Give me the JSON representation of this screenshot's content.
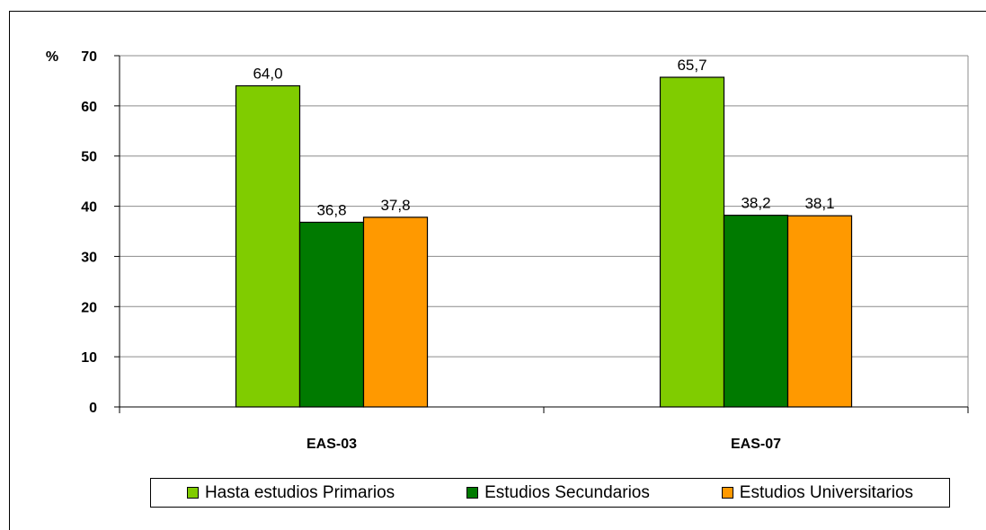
{
  "chart_data": {
    "type": "bar",
    "ylabel": "%",
    "ylim": [
      0,
      70
    ],
    "yticks": [
      0,
      10,
      20,
      30,
      40,
      50,
      60,
      70
    ],
    "grid": true,
    "legend_position": "bottom",
    "categories": [
      "EAS-03",
      "EAS-07"
    ],
    "series": [
      {
        "name": "Hasta estudios Primarios",
        "color": "#80cc00",
        "values": [
          64.0,
          65.7
        ],
        "labels": [
          "64,0",
          "65,7"
        ]
      },
      {
        "name": "Estudios Secundarios",
        "color": "#007a00",
        "values": [
          36.8,
          38.2
        ],
        "labels": [
          "36,8",
          "38,2"
        ]
      },
      {
        "name": "Estudios Universitarios",
        "color": "#ff9900",
        "values": [
          37.8,
          38.1
        ],
        "labels": [
          "37,8",
          "38,1"
        ]
      }
    ]
  }
}
